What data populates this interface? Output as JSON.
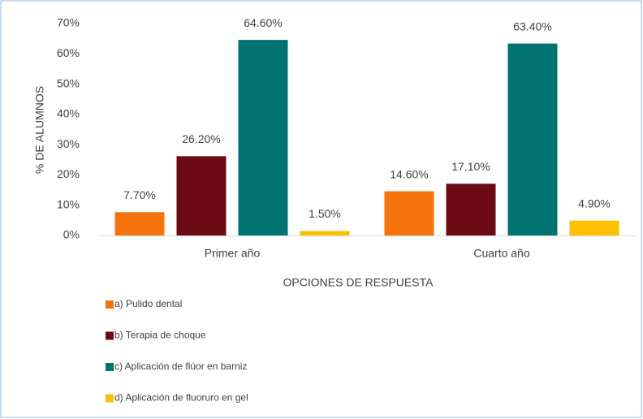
{
  "chart_data": {
    "type": "bar",
    "x_label": "OPCIONES DE RESPUESTA",
    "y_label": "% DE ALUMNOS",
    "categories": [
      "Primer año",
      "Cuarto año"
    ],
    "series": [
      {
        "name": "a) Pulido dental",
        "color": "#f5730a",
        "values": [
          7.7,
          14.6
        ],
        "value_labels": [
          "7.70%",
          "14.60%"
        ]
      },
      {
        "name": "b) Terapia de choque",
        "color": "#6c0a14",
        "values": [
          26.2,
          17.1
        ],
        "value_labels": [
          "26.20%",
          "17.10%"
        ]
      },
      {
        "name": "c) Aplicación de flúor en barniz",
        "color": "#007271",
        "values": [
          64.6,
          63.4
        ],
        "value_labels": [
          "64.60%",
          "63.40%"
        ]
      },
      {
        "name": "d) Aplicación de fluoruro en gel",
        "color": "#ffc000",
        "values": [
          1.5,
          4.9
        ],
        "value_labels": [
          "1.50%",
          "4.90%"
        ]
      }
    ],
    "ylim": [
      0,
      70
    ],
    "yticks": [
      {
        "value": 0,
        "label": "0%"
      },
      {
        "value": 10,
        "label": "10%"
      },
      {
        "value": 20,
        "label": "20%"
      },
      {
        "value": 30,
        "label": "30%"
      },
      {
        "value": 40,
        "label": "40%"
      },
      {
        "value": 50,
        "label": "50%"
      },
      {
        "value": 60,
        "label": "60%"
      },
      {
        "value": 70,
        "label": "70%"
      }
    ],
    "grid": false,
    "legend": "bottom-left"
  }
}
